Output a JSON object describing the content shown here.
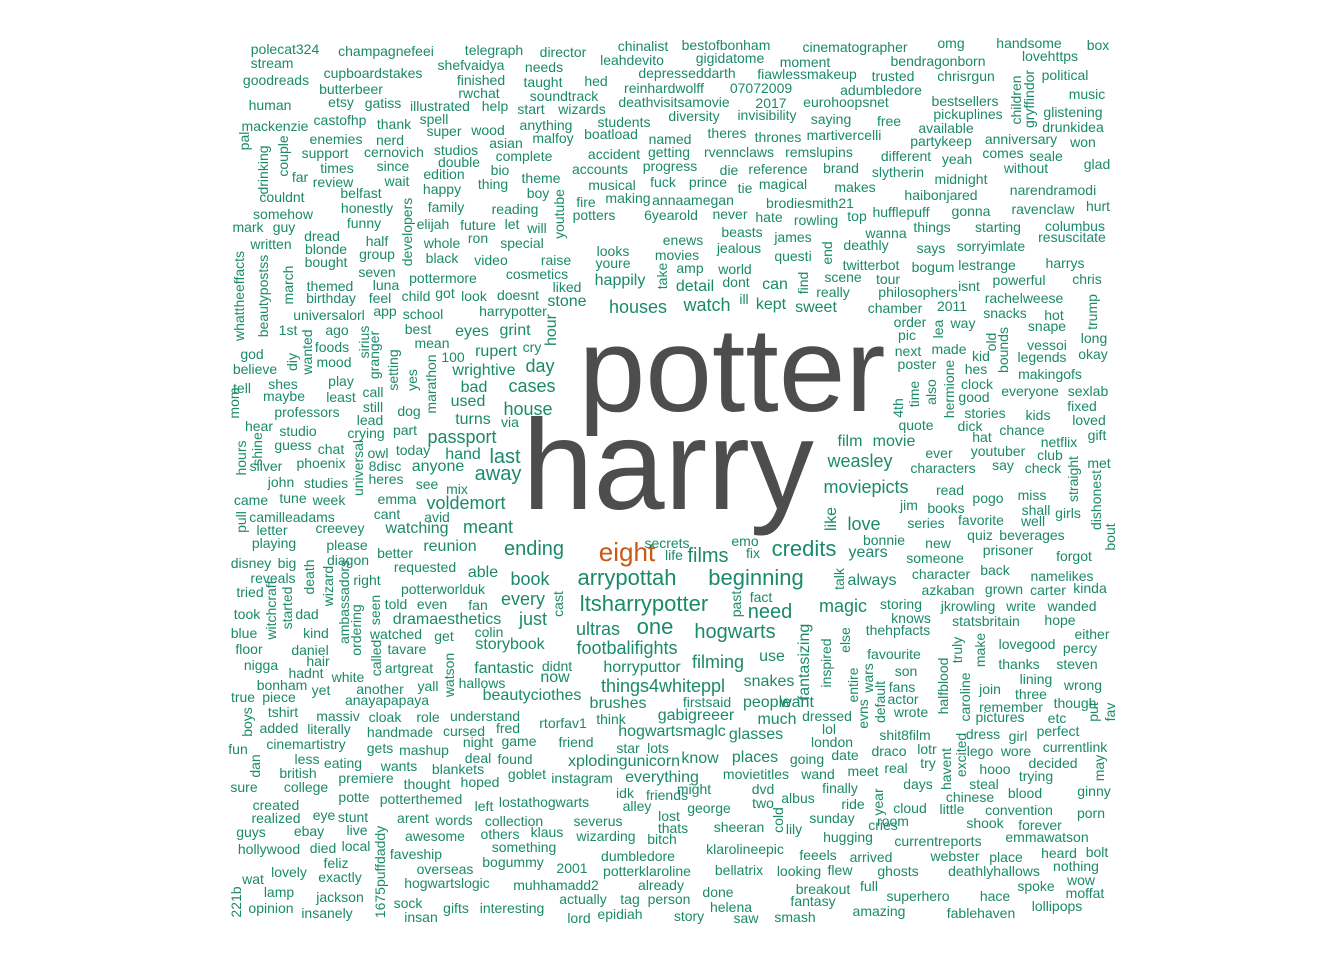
{
  "colors": {
    "small_words": "#1b8a6b",
    "top_words": "#4d4d4d",
    "highlight": "#c85a14"
  },
  "featured": {
    "w1": "potter",
    "w2": "harry",
    "w3": "eight"
  },
  "words": [
    "polecat324",
    "champagnefeei",
    "telegraph",
    "director",
    "chinalist",
    "bestofbonham",
    "cinematographer",
    "omg",
    "handsome",
    "box",
    "stream",
    "shefvaidya",
    "needs",
    "leahdevito",
    "gigidatome",
    "moment",
    "bendragonborn",
    "lovehttps",
    "goodreads",
    "cupboardstakes",
    "finished",
    "taught",
    "hed",
    "depresseddarth",
    "fiawlessmakeup",
    "trusted",
    "chrisrgun",
    "political",
    "butterbeer",
    "rwchat",
    "soundtrack",
    "reinhardwolff",
    "07072009",
    "adumbledore",
    "music",
    "human",
    "etsy",
    "gatiss",
    "illustrated",
    "help",
    "start",
    "wizards",
    "deathvisitsamovie",
    "2017",
    "eurohoopsnet",
    "bestsellers",
    "glistening",
    "mackenzie",
    "castofhp",
    "spell",
    "students",
    "diversity",
    "invisibility",
    "saying",
    "pickuplines",
    "thank",
    "super",
    "wood",
    "anything",
    "malfoy",
    "boatload",
    "named",
    "theres",
    "thrones",
    "martivercelli",
    "available",
    "drunkidea",
    "enemies",
    "nerd",
    "asian",
    "free",
    "partykeep",
    "anniversary",
    "won",
    "support",
    "cernovich",
    "studios",
    "complete",
    "accident",
    "getting",
    "rvennclaws",
    "remslupins",
    "different",
    "yeah",
    "comes",
    "seale",
    "glad",
    "times",
    "since",
    "double",
    "bio",
    "progress",
    "die",
    "reference",
    "brand",
    "slytherin",
    "midnight",
    "without",
    "far",
    "review",
    "wait",
    "edition",
    "thing",
    "theme",
    "accounts",
    "musical",
    "fuck",
    "prince",
    "tie",
    "magical",
    "makes",
    "haibonjared",
    "narendramodi",
    "couldnt",
    "belfast",
    "happy",
    "boy",
    "fire",
    "making",
    "annaamegan",
    "brodiesmith21",
    "hufflepuff",
    "gonna",
    "ravenclaw",
    "hurt",
    "somehow",
    "honestly",
    "family",
    "reading",
    "potters",
    "6yearold",
    "never",
    "hate",
    "rowling",
    "top",
    "things",
    "starting",
    "columbus",
    "mark",
    "guy",
    "funny",
    "elijah",
    "future",
    "let",
    "will",
    "beasts",
    "james",
    "wanna",
    "sorryimlate",
    "resuscitate",
    "dread",
    "half",
    "ron",
    "special",
    "enews",
    "jealous",
    "deathly",
    "says",
    "harrys",
    "written",
    "blonde",
    "group",
    "whole",
    "black",
    "video",
    "raise",
    "looks",
    "movies",
    "questi",
    "twitterbot",
    "bogum",
    "lestrange",
    "bought",
    "seven",
    "youre",
    "amp",
    "world",
    "powerful",
    "chris",
    "themed",
    "luna",
    "pottermore",
    "cosmetics",
    "liked",
    "happily",
    "detail",
    "dont",
    "can",
    "scene",
    "tour",
    "isnt",
    "birthday",
    "feel",
    "child",
    "got",
    "look",
    "doesnt",
    "stone",
    "ill",
    "kept",
    "really",
    "philosophers",
    "rachelweese",
    "houses",
    "watch",
    "sweet",
    "chamber",
    "2011",
    "snacks",
    "hot",
    "universalorl",
    "app",
    "school",
    "harrypotter",
    "grint",
    "order",
    "way",
    "snape",
    "1st",
    "ago",
    "best",
    "eyes",
    "pic",
    "long",
    "vessoi",
    "god",
    "foods",
    "mean",
    "rupert",
    "cry",
    "next",
    "made",
    "kid",
    "legends",
    "okay",
    "believe",
    "mood",
    "100",
    "wrightive",
    "day",
    "poster",
    "hes",
    "makingofs",
    "tell",
    "play",
    "bad",
    "cases",
    "clock",
    "everyone",
    "sexlab",
    "shes",
    "maybe",
    "least",
    "call",
    "used",
    "good",
    "professors",
    "still",
    "dog",
    "house",
    "stories",
    "kids",
    "fixed",
    "lead",
    "turns",
    "via",
    "loved",
    "hear",
    "studio",
    "crying",
    "part",
    "quote",
    "dick",
    "chance",
    "guess",
    "chat",
    "passport",
    "hat",
    "gift",
    "owl",
    "today",
    "hand",
    "film",
    "movie",
    "netflix",
    "silver",
    "phoenix",
    "8disc",
    "anyone",
    "last",
    "weasley",
    "ever",
    "youtuber",
    "club",
    "met",
    "john",
    "studies",
    "heres",
    "away",
    "say",
    "check",
    "characters",
    "see",
    "mix",
    "voldemort",
    "moviepicts",
    "read",
    "pogo",
    "miss",
    "came",
    "tune",
    "week",
    "emma",
    "camilleadams",
    "avid",
    "jim",
    "books",
    "shall",
    "girls",
    "cant",
    "well",
    "letter",
    "creevey",
    "watching",
    "meant",
    "series",
    "favorite",
    "love",
    "quiz",
    "beverages",
    "playing",
    "please",
    "reunion",
    "secrets",
    "emo",
    "bonnie",
    "new",
    "prisoner",
    "better",
    "ending",
    "films",
    "credits",
    "years",
    "someone",
    "forgot",
    "big",
    "diagon",
    "requested",
    "able",
    "life",
    "fix",
    "back",
    "namelikes",
    "disney",
    "reveals",
    "right",
    "book",
    "beginning",
    "always",
    "character",
    "potterworlduk",
    "arrypottah",
    "azkaban",
    "grown",
    "carter",
    "kinda",
    "tried",
    "every",
    "fact",
    "magic",
    "storing",
    "jkrowling",
    "write",
    "wanded",
    "told",
    "even",
    "fan",
    "ltsharrypotter",
    "need",
    "took",
    "dad",
    "dramaesthetics",
    "just",
    "knows",
    "statsbritain",
    "hope",
    "kind",
    "watched",
    "get",
    "colin",
    "ultras",
    "one",
    "hogwarts",
    "thehpfacts",
    "either",
    "blue",
    "daniel",
    "storybook",
    "footbalifights",
    "favourite",
    "lovegood",
    "percy",
    "floor",
    "tavare",
    "filming",
    "use",
    "nigga",
    "hair",
    "artgreat",
    "fantastic",
    "didnt",
    "horryputtor",
    "son",
    "thanks",
    "steven",
    "hadnt",
    "white",
    "now",
    "snakes",
    "fans",
    "lining",
    "bonham",
    "yet",
    "another",
    "yall",
    "hallows",
    "things4whiteppl",
    "wrong",
    "true",
    "piece",
    "anayapapaya",
    "beautyciothes",
    "people",
    "actor",
    "three",
    "brushes",
    "firstsaid",
    "want",
    "wrote",
    "remember",
    "though",
    "massiv",
    "cloak",
    "role",
    "understand",
    "gabigreeer",
    "join",
    "tshirt",
    "rtorfav1",
    "think",
    "dressed",
    "pictures",
    "etc",
    "added",
    "literally",
    "handmade",
    "cursed",
    "fred",
    "hogwartsmaglc",
    "much",
    "lol",
    "shit8film",
    "perfect",
    "fun",
    "cinemartistry",
    "night",
    "game",
    "friend",
    "glasses",
    "london",
    "lotr",
    "dress",
    "girl",
    "currentlink",
    "gets",
    "mashup",
    "star",
    "lots",
    "date",
    "draco",
    "lego",
    "wore",
    "less",
    "eating",
    "deal",
    "found",
    "xplodingunicorn",
    "know",
    "places",
    "going",
    "decided",
    "british",
    "wants",
    "blankets",
    "goblet",
    "real",
    "try",
    "hooo",
    "trying",
    "sure",
    "college",
    "premiere",
    "hoped",
    "instagram",
    "everything",
    "movietitles",
    "wand",
    "meet",
    "days",
    "steal",
    "thought",
    "idk",
    "might",
    "dvd",
    "finally",
    "ginny",
    "potte",
    "potterthemed",
    "lostathogwarts",
    "friends",
    "albus",
    "chinese",
    "blood",
    "created",
    "left",
    "alley",
    "lost",
    "george",
    "two",
    "ride",
    "cloud",
    "little",
    "convention",
    "realized",
    "eye",
    "stunt",
    "arent",
    "words",
    "collection",
    "severus",
    "thats",
    "sheeran",
    "sunday",
    "room",
    "shook",
    "porn",
    "guys",
    "ebay",
    "live",
    "awesome",
    "others",
    "klaus",
    "wizarding",
    "bitch",
    "lily",
    "hugging",
    "cries",
    "currentreports",
    "forever",
    "emmawatson",
    "hollywood",
    "died",
    "local",
    "faveship",
    "something",
    "klarolineepic",
    "feeels",
    "arrived",
    "webster",
    "place",
    "heard",
    "bolt",
    "feliz",
    "overseas",
    "bogummy",
    "2001",
    "dumbledore",
    "potterklaroline",
    "bellatrix",
    "looking",
    "flew",
    "ghosts",
    "deathlyhallows",
    "nothing",
    "wat",
    "lovely",
    "exactly",
    "hogwartslogic",
    "muhhamadd2",
    "already",
    "breakout",
    "full",
    "spoke",
    "wow",
    "lamp",
    "jackson",
    "sock",
    "gifts",
    "interesting",
    "actually",
    "tag",
    "person",
    "done",
    "fantasy",
    "superhero",
    "hace",
    "moffat",
    "opinion",
    "insanely",
    "insan",
    "epidiah",
    "story",
    "helena",
    "saw",
    "smash",
    "amazing",
    "fablehaven",
    "lollipops",
    "lord",
    "children",
    "gryffindor",
    "pal",
    "couple",
    "drinking",
    "developers",
    "youtube",
    "end",
    "find",
    "take",
    "hour",
    "cast",
    "talk",
    "like",
    "straight",
    "dishonest",
    "bout",
    "fantasizing",
    "inspired",
    "else",
    "entire",
    "wars",
    "evns",
    "default",
    "halfblood",
    "caroline",
    "truly",
    "make",
    "harry",
    "4th",
    "time",
    "also",
    "hermione",
    "old",
    "bounds",
    "lea",
    "sirius",
    "granger",
    "setting",
    "yes",
    "marathon",
    "universal",
    "hours",
    "pull",
    "shine",
    "mom",
    "diy",
    "wanted",
    "whattheeffacts",
    "beautypostss",
    "march",
    "witchcraft",
    "started",
    "death",
    "wizard",
    "ambassadors",
    "ordering",
    "seen",
    "called",
    "watson",
    "past",
    "cold",
    "year",
    "havent",
    "excited",
    "boys",
    "dan",
    "221b",
    "1675puffdaddy",
    "put",
    "fav",
    "may",
    "trump",
    "march2"
  ]
}
